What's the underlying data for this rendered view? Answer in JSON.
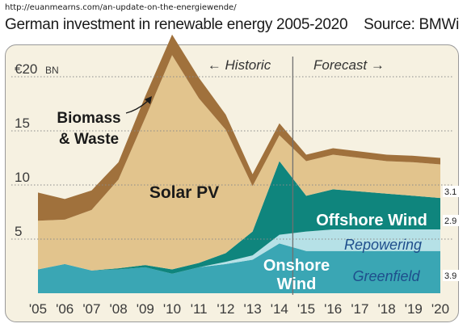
{
  "header": {
    "url": "http://euanmearns.com/an-update-on-the-energiewende/",
    "title": "German investment in renewable energy 2005-2020",
    "source": "Source: BMWi"
  },
  "colors": {
    "background": "#f6f1e1",
    "biomass": "#a0713c",
    "solar": "#e2c48d",
    "offshore": "#0f857d",
    "repowering": "#b6e1e7",
    "greenfield": "#3aa6b4",
    "grid": "#8a8a8a",
    "text": "#1a1a1a"
  },
  "chart_data": {
    "type": "area",
    "stacked": true,
    "title": "German investment in renewable energy 2005-2020",
    "source": "Source: BMWi",
    "x": [
      "'05",
      "'06",
      "'07",
      "'08",
      "'09",
      "'10",
      "'11",
      "'12",
      "'13",
      "'14",
      "'15",
      "'16",
      "'17",
      "'18",
      "'19",
      "'20"
    ],
    "y_unit_label": "€20 BN",
    "yticks": [
      "5",
      "10",
      "15",
      "€20"
    ],
    "ylim": [
      0,
      23
    ],
    "grid": true,
    "period_labels": {
      "historic": "← Historic",
      "forecast": "Forecast →"
    },
    "divider_between": [
      "'14",
      "'15"
    ],
    "series": [
      {
        "name": "Greenfield",
        "label_group": "Onshore Wind",
        "values": [
          2.2,
          2.7,
          2.1,
          2.2,
          2.4,
          1.8,
          2.4,
          2.7,
          3.1,
          4.6,
          3.9,
          3.9,
          3.9,
          3.9,
          3.9,
          3.9
        ]
      },
      {
        "name": "Repowering",
        "label_group": "Onshore Wind",
        "values": [
          0,
          0,
          0,
          0,
          0,
          0,
          0,
          0.2,
          0.4,
          0.8,
          1.8,
          2.0,
          2.0,
          2.0,
          2.0,
          2.0
        ]
      },
      {
        "name": "Offshore Wind",
        "values": [
          0,
          0,
          0,
          0.1,
          0.2,
          0.4,
          0.4,
          0.8,
          2.2,
          6.8,
          3.3,
          3.7,
          3.5,
          3.3,
          3.1,
          2.9
        ]
      },
      {
        "name": "Solar PV",
        "values": [
          4.5,
          4.1,
          5.6,
          8.2,
          13.6,
          19.8,
          15.2,
          11.4,
          4.2,
          2.4,
          3.2,
          3.2,
          3.1,
          3.0,
          3.1,
          3.1
        ]
      },
      {
        "name": "Biomass & Waste",
        "values": [
          2.6,
          1.9,
          1.8,
          1.6,
          2.0,
          1.9,
          1.9,
          1.4,
          1.1,
          1.1,
          0.6,
          0.6,
          0.6,
          0.6,
          0.6,
          0.6
        ]
      }
    ],
    "annotations": [
      {
        "text": "Biomass",
        "series": "Biomass & Waste"
      },
      {
        "text": "& Waste",
        "series": "Biomass & Waste"
      },
      {
        "text": "Solar PV",
        "series": "Solar PV"
      },
      {
        "text": "Offshore Wind",
        "series": "Offshore Wind"
      },
      {
        "text": "Repowering",
        "series": "Repowering"
      },
      {
        "text": "Onshore",
        "series": "Greenfield"
      },
      {
        "text": "Wind",
        "series": "Greenfield"
      },
      {
        "text": "Greenfield",
        "series": "Greenfield"
      }
    ],
    "end_labels": [
      "3.1",
      "2.9",
      "3.9"
    ]
  }
}
